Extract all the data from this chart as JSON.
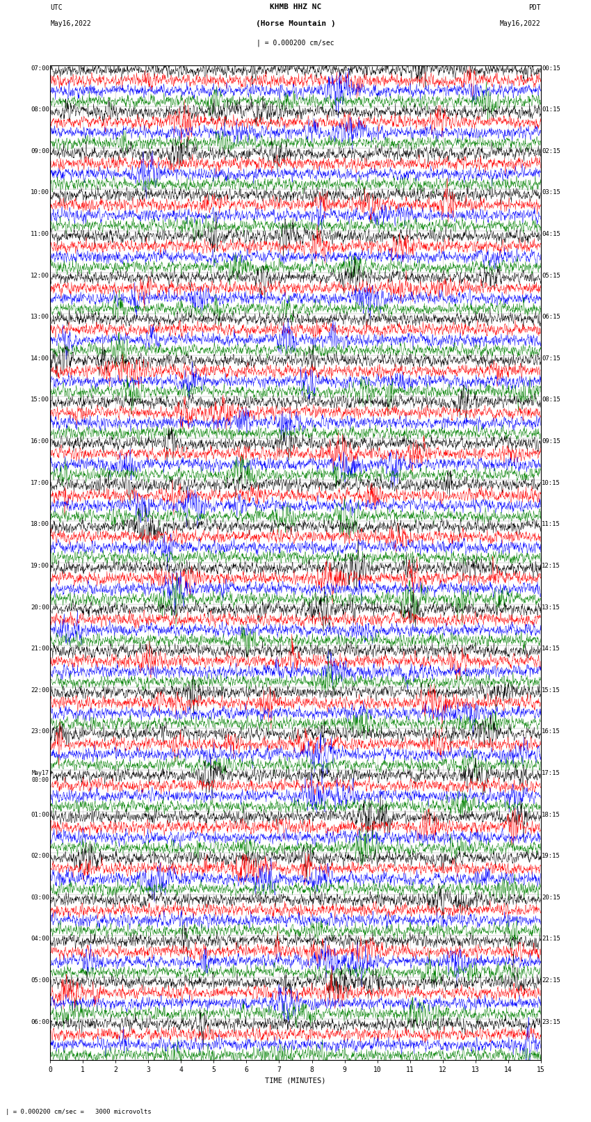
{
  "title_line1": "KHMB HHZ NC",
  "title_line2": "(Horse Mountain )",
  "scale_label": "| = 0.000200 cm/sec",
  "bottom_label": "| = 0.000200 cm/sec =   3000 microvolts",
  "xlabel": "TIME (MINUTES)",
  "utc_label": "UTC\nMay16,2022",
  "pdt_label": "PDT\nMay16,2022",
  "left_times": [
    "07:00",
    "08:00",
    "09:00",
    "10:00",
    "11:00",
    "12:00",
    "13:00",
    "14:00",
    "15:00",
    "16:00",
    "17:00",
    "18:00",
    "19:00",
    "20:00",
    "21:00",
    "22:00",
    "23:00",
    "May17\n00:00",
    "01:00",
    "02:00",
    "03:00",
    "04:00",
    "05:00",
    "06:00"
  ],
  "right_times": [
    "00:15",
    "01:15",
    "02:15",
    "03:15",
    "04:15",
    "05:15",
    "06:15",
    "07:15",
    "08:15",
    "09:15",
    "10:15",
    "11:15",
    "12:15",
    "13:15",
    "14:15",
    "15:15",
    "16:15",
    "17:15",
    "18:15",
    "19:15",
    "20:15",
    "21:15",
    "22:15",
    "23:15"
  ],
  "colors": [
    "black",
    "red",
    "blue",
    "green"
  ],
  "num_groups": 24,
  "traces_per_group": 4,
  "xlim": [
    0,
    15
  ],
  "xticks": [
    0,
    1,
    2,
    3,
    4,
    5,
    6,
    7,
    8,
    9,
    10,
    11,
    12,
    13,
    14,
    15
  ],
  "background": "white",
  "fig_width": 8.5,
  "fig_height": 16.13,
  "seed": 42
}
